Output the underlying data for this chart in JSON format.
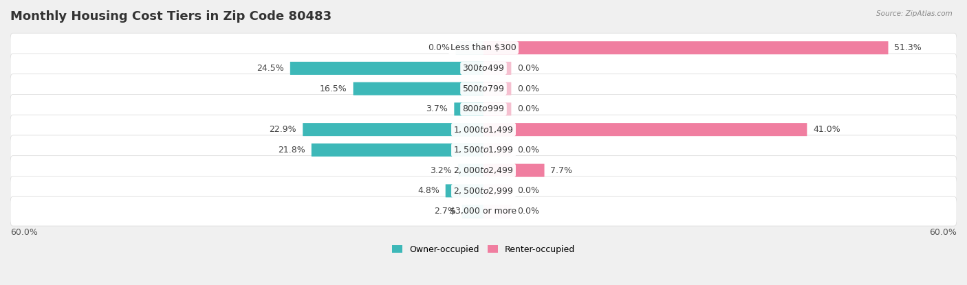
{
  "title": "Monthly Housing Cost Tiers in Zip Code 80483",
  "source": "Source: ZipAtlas.com",
  "categories": [
    "Less than $300",
    "$300 to $499",
    "$500 to $799",
    "$800 to $999",
    "$1,000 to $1,499",
    "$1,500 to $1,999",
    "$2,000 to $2,499",
    "$2,500 to $2,999",
    "$3,000 or more"
  ],
  "owner_values": [
    0.0,
    24.5,
    16.5,
    3.7,
    22.9,
    21.8,
    3.2,
    4.8,
    2.7
  ],
  "renter_values": [
    51.3,
    0.0,
    0.0,
    0.0,
    41.0,
    0.0,
    7.7,
    0.0,
    0.0
  ],
  "owner_color": "#3DB8B8",
  "renter_color": "#F07EA0",
  "owner_stub_color": "#A8D8DA",
  "renter_stub_color": "#F5C0D0",
  "axis_limit": 60.0,
  "background_color": "#f0f0f0",
  "bar_bg_color": "#ffffff",
  "row_bg_color": "#f7f7f7",
  "title_fontsize": 13,
  "label_fontsize": 9,
  "value_fontsize": 9,
  "tick_fontsize": 9,
  "stub_size": 3.5
}
